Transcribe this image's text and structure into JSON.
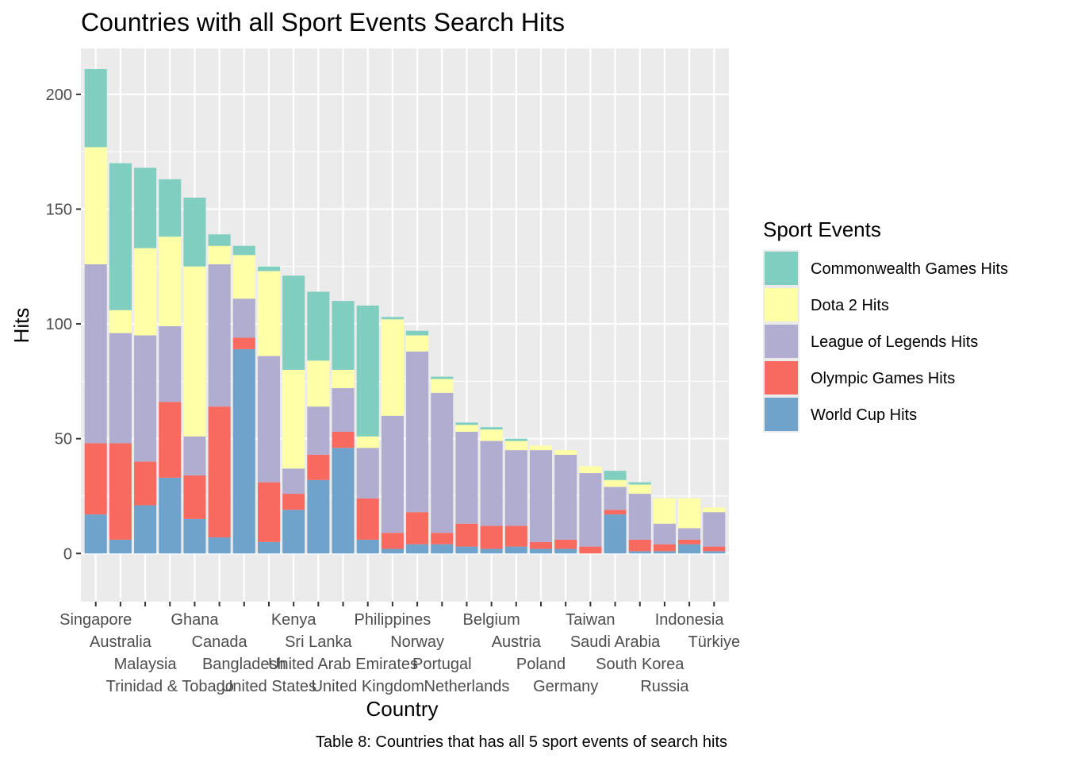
{
  "chart_data": {
    "type": "bar",
    "stacked": true,
    "title": "Countries with all Sport Events Search Hits",
    "xlabel": "Country",
    "ylabel": "Hits",
    "caption": "Table 8: Countries that has all 5 sport events of search hits",
    "ylim": [
      -21,
      220
    ],
    "yticks": [
      0,
      50,
      100,
      150,
      200
    ],
    "grid": true,
    "legend_title": "Sport Events",
    "legend_position": "right",
    "categories": [
      "Singapore",
      "Australia",
      "Malaysia",
      "Trinidad & Tobago",
      "Ghana",
      "Canada",
      "Bangladesh",
      "United States",
      "Kenya",
      "Sri Lanka",
      "United Arab Emirates",
      "United Kingdom",
      "Philippines",
      "Norway",
      "Portugal",
      "Netherlands",
      "Belgium",
      "Austria",
      "Poland",
      "Germany",
      "Taiwan",
      "Saudi Arabia",
      "South Korea",
      "Russia",
      "Indonesia",
      "Türkiye"
    ],
    "series": [
      {
        "name": "World Cup Hits",
        "color": "#6FA3CB",
        "values": [
          17,
          6,
          21,
          33,
          15,
          7,
          89,
          5,
          19,
          32,
          46,
          6,
          2,
          4,
          4,
          3,
          2,
          3,
          2,
          2,
          0,
          17,
          1,
          1,
          4,
          1
        ]
      },
      {
        "name": "Olympic Games Hits",
        "color": "#F8695F",
        "values": [
          31,
          42,
          19,
          33,
          19,
          57,
          5,
          26,
          7,
          11,
          7,
          18,
          7,
          14,
          5,
          10,
          10,
          9,
          3,
          4,
          3,
          2,
          5,
          3,
          2,
          2
        ]
      },
      {
        "name": "League of Legends Hits",
        "color": "#B1ADD1",
        "values": [
          78,
          48,
          55,
          33,
          17,
          62,
          17,
          55,
          11,
          21,
          19,
          22,
          51,
          70,
          61,
          40,
          37,
          33,
          40,
          37,
          32,
          10,
          20,
          9,
          5,
          15
        ]
      },
      {
        "name": "Dota 2 Hits",
        "color": "#FFFFA8",
        "values": [
          51,
          10,
          38,
          39,
          74,
          8,
          19,
          37,
          43,
          20,
          8,
          5,
          42,
          7,
          6,
          3,
          5,
          4,
          2,
          2,
          3,
          3,
          4,
          11,
          13,
          2
        ]
      },
      {
        "name": "Commonwealth Games Hits",
        "color": "#7FCEBF",
        "values": [
          34,
          64,
          35,
          25,
          30,
          5,
          4,
          2,
          41,
          30,
          30,
          57,
          1,
          2,
          1,
          1,
          1,
          1,
          0,
          0,
          0,
          4,
          1,
          0,
          0,
          0
        ]
      }
    ],
    "legend_order": [
      "Commonwealth Games Hits",
      "Dota 2 Hits",
      "League of Legends Hits",
      "Olympic Games Hits",
      "World Cup Hits"
    ]
  }
}
